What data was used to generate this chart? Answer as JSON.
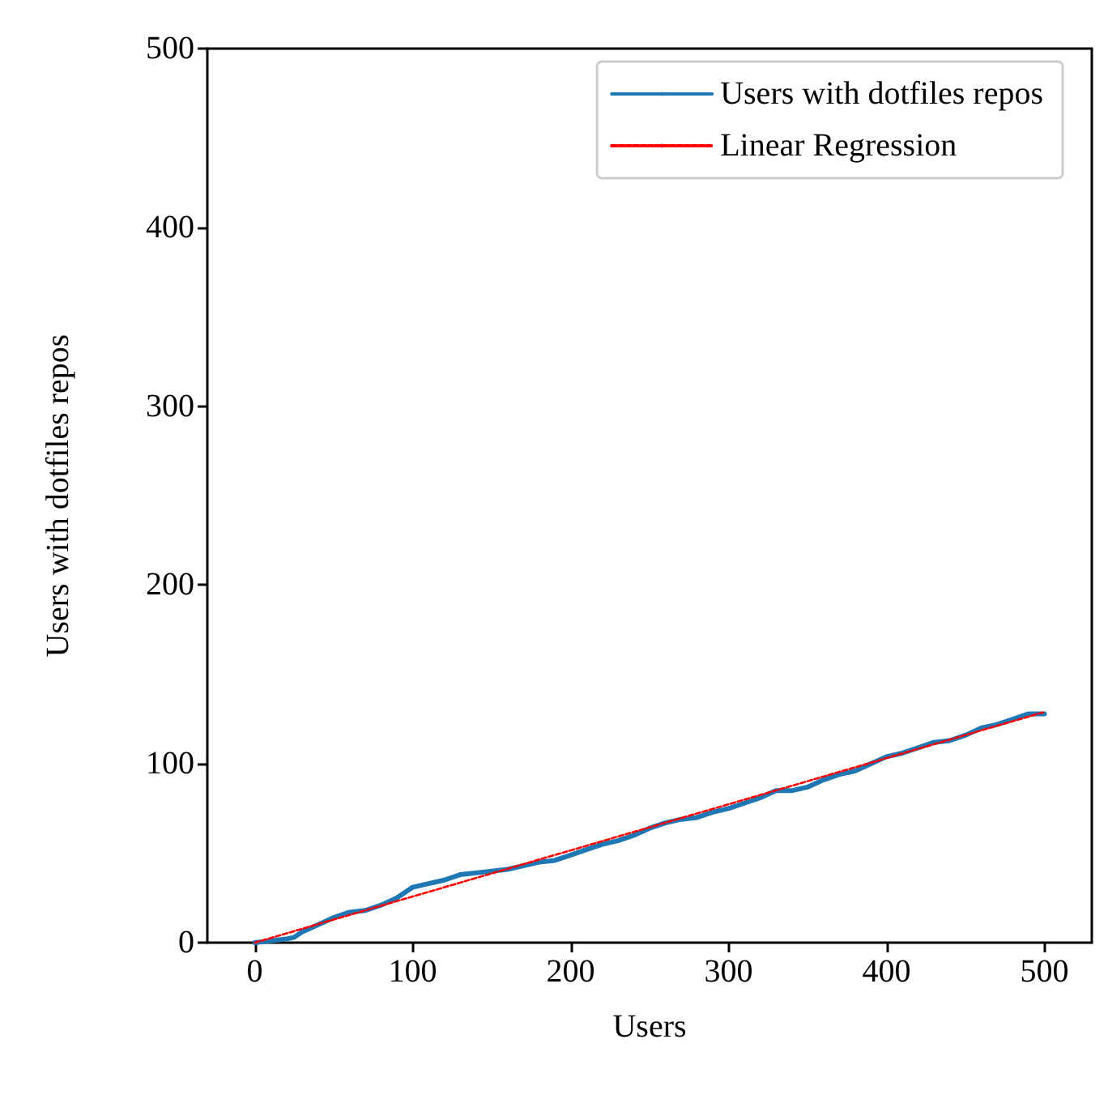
{
  "chart_data": {
    "type": "line",
    "xlabel": "Users",
    "ylabel": "Users with dotfiles repos",
    "xlim": [
      -30,
      530
    ],
    "ylim": [
      0,
      500
    ],
    "xticks": [
      0,
      100,
      200,
      300,
      400,
      500
    ],
    "yticks": [
      0,
      100,
      200,
      300,
      400,
      500
    ],
    "grid": false,
    "legend": "top right",
    "marker": "none",
    "x": [
      0,
      10,
      20,
      25,
      30,
      40,
      50,
      60,
      70,
      80,
      90,
      100,
      110,
      120,
      130,
      140,
      150,
      160,
      170,
      180,
      190,
      200,
      210,
      220,
      230,
      240,
      250,
      260,
      270,
      280,
      290,
      300,
      310,
      320,
      330,
      340,
      350,
      360,
      370,
      380,
      390,
      400,
      410,
      420,
      430,
      440,
      450,
      460,
      470,
      480,
      490,
      500
    ],
    "series": [
      {
        "name": "Users with dotfiles repos",
        "color": "#1f77b4",
        "line_style": "solid",
        "values": [
          0,
          1,
          2,
          3,
          6,
          10,
          14,
          17,
          18,
          21,
          25,
          31,
          33,
          35,
          38,
          39,
          40,
          41,
          43,
          45,
          46,
          49,
          52,
          55,
          57,
          60,
          64,
          67,
          69,
          70,
          73,
          75,
          78,
          81,
          85,
          85,
          87,
          91,
          94,
          96,
          100,
          104,
          106,
          109,
          112,
          113,
          116,
          120,
          122,
          125,
          128,
          128
        ]
      },
      {
        "name": "Linear Regression",
        "color": "#ff0000",
        "line_style": "dashed",
        "x": [
          0,
          500
        ],
        "values": [
          0,
          129
        ]
      }
    ]
  }
}
